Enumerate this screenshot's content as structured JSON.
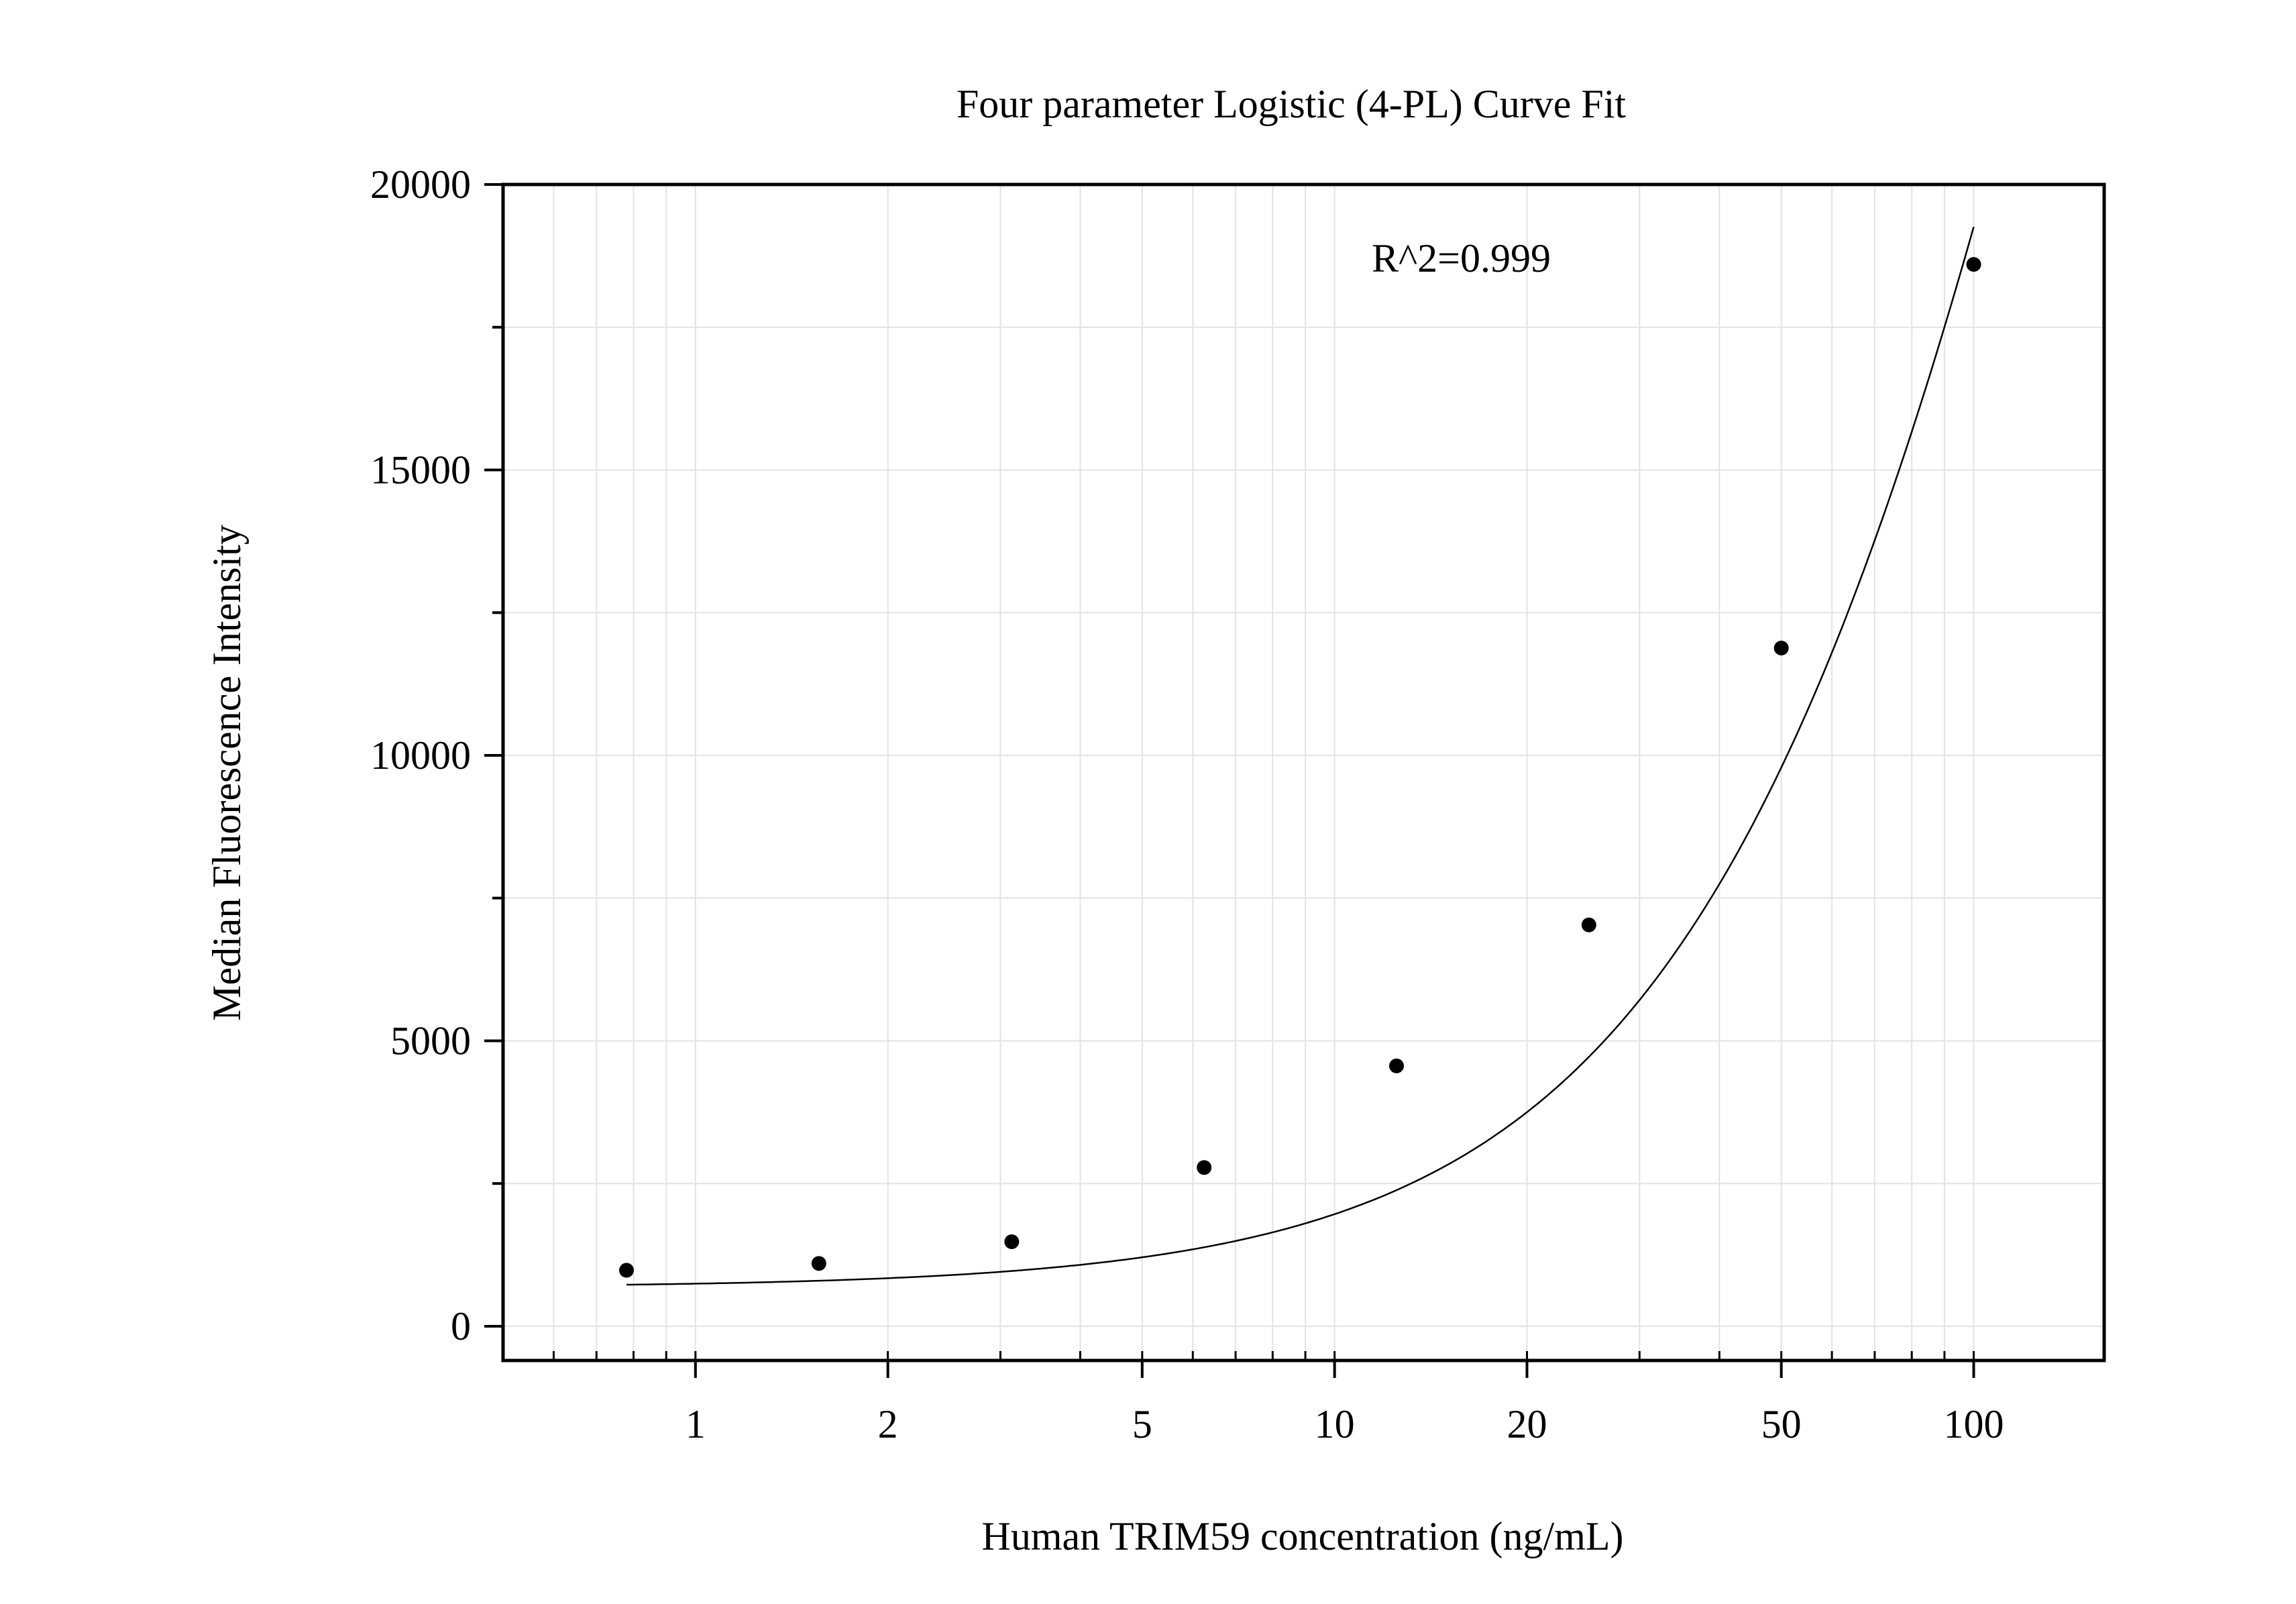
{
  "chart_data": {
    "type": "scatter",
    "title": "Four parameter Logistic (4-PL) Curve Fit",
    "xlabel": "Human TRIM59 concentration (ng/mL)",
    "ylabel": "Median Fluorescence Intensity",
    "x_scale": "log",
    "xlim": [
      0.5,
      160
    ],
    "ylim": [
      -600,
      20000
    ],
    "x_ticks": [
      1,
      2,
      5,
      10,
      20,
      50,
      100
    ],
    "x_tick_labels": [
      "1",
      "2",
      "5",
      "10",
      "20",
      "50",
      "100"
    ],
    "y_ticks": [
      0,
      5000,
      10000,
      15000,
      20000
    ],
    "y_tick_labels": [
      "0",
      "5000",
      "10000",
      "15000",
      "20000"
    ],
    "grid": true,
    "annotation": "R^2=0.999",
    "series": [
      {
        "points": [
          {
            "x": 0.78,
            "y": 980
          },
          {
            "x": 1.56,
            "y": 1100
          },
          {
            "x": 3.125,
            "y": 1480
          },
          {
            "x": 6.25,
            "y": 2780
          },
          {
            "x": 12.5,
            "y": 4560
          },
          {
            "x": 25,
            "y": 7030
          },
          {
            "x": 50,
            "y": 11880
          },
          {
            "x": 100,
            "y": 18600
          }
        ]
      }
    ],
    "fit_curve": {
      "model": "4PL",
      "A": 680,
      "B": 1.3,
      "C": 200,
      "D": 65000,
      "x_range": [
        0.78,
        100
      ]
    },
    "colors": {
      "points": "#000000",
      "curve": "#000000",
      "grid": "#e3e3e3",
      "axes": "#000000"
    }
  }
}
